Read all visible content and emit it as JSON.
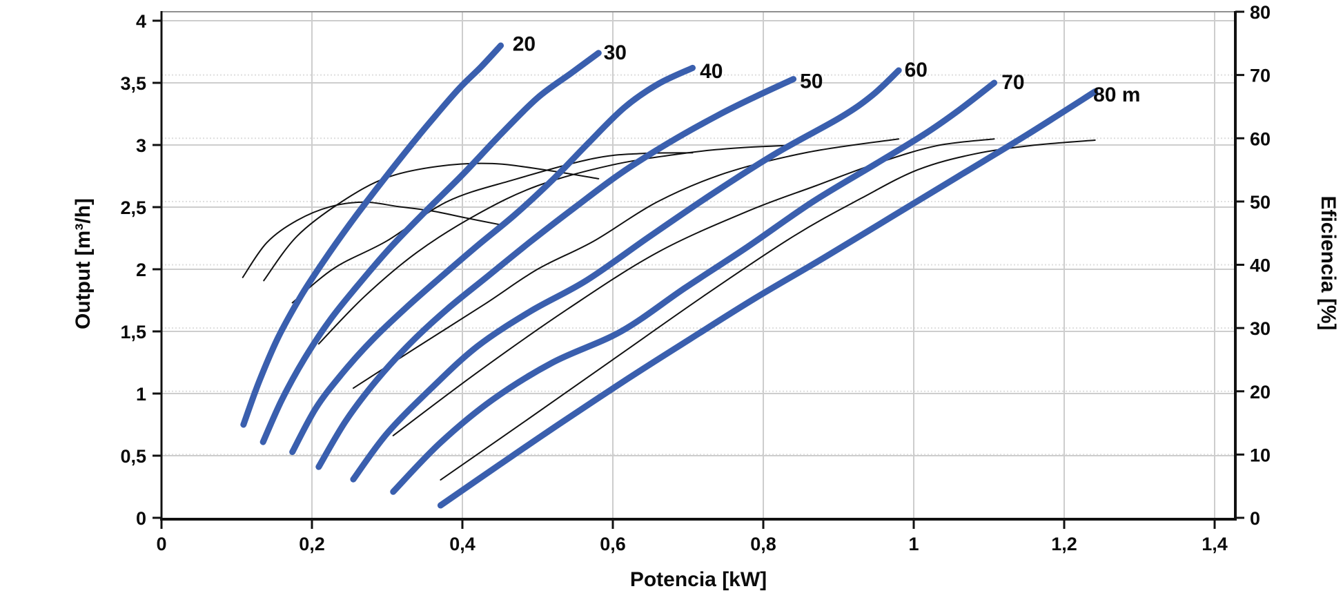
{
  "chart_data": {
    "type": "line",
    "title": "",
    "xlabel": "Potencia [kW]",
    "ylabel_left": "Output [m³/h]",
    "ylabel_right": "Eficiencia [%]",
    "x_axis": {
      "min": 0,
      "max": 1.427,
      "ticks": [
        0,
        0.2,
        0.4,
        0.6,
        0.8,
        1.0,
        1.2,
        1.4
      ],
      "tick_labels": [
        "0",
        "0,2",
        "0,4",
        "0,6",
        "0,8",
        "1",
        "1,2",
        "1,4"
      ],
      "grid": "solid, at every 0.2"
    },
    "y_axis_left": {
      "min": 0,
      "max": 4.07,
      "ticks": [
        0,
        0.5,
        1.0,
        1.5,
        2.0,
        2.5,
        3.0,
        3.5,
        4.0
      ],
      "tick_labels": [
        "0",
        "0,5",
        "1",
        "1,5",
        "2",
        "2,5",
        "3",
        "3,5",
        "4"
      ],
      "grid": "solid, at every 0.5"
    },
    "y_axis_right": {
      "min": 0,
      "max": 80,
      "ticks": [
        0,
        10,
        20,
        30,
        40,
        50,
        60,
        70,
        80
      ],
      "tick_labels": [
        "0",
        "10",
        "20",
        "30",
        "40",
        "50",
        "60",
        "70",
        "80"
      ],
      "grid": "dotted, at every 10"
    },
    "head_curves": [
      {
        "label": "20",
        "label_at": [
          0.482,
          3.82
        ],
        "points": [
          [
            0.109,
            0.75
          ],
          [
            0.13,
            1.1
          ],
          [
            0.155,
            1.45
          ],
          [
            0.185,
            1.78
          ],
          [
            0.215,
            2.06
          ],
          [
            0.25,
            2.36
          ],
          [
            0.285,
            2.64
          ],
          [
            0.32,
            2.91
          ],
          [
            0.355,
            3.17
          ],
          [
            0.395,
            3.45
          ],
          [
            0.425,
            3.63
          ],
          [
            0.451,
            3.8
          ]
        ]
      },
      {
        "label": "30",
        "label_at": [
          0.603,
          3.75
        ],
        "points": [
          [
            0.135,
            0.61
          ],
          [
            0.16,
            0.95
          ],
          [
            0.19,
            1.28
          ],
          [
            0.225,
            1.6
          ],
          [
            0.265,
            1.9
          ],
          [
            0.305,
            2.18
          ],
          [
            0.35,
            2.46
          ],
          [
            0.4,
            2.76
          ],
          [
            0.45,
            3.08
          ],
          [
            0.5,
            3.38
          ],
          [
            0.545,
            3.58
          ],
          [
            0.581,
            3.74
          ]
        ]
      },
      {
        "label": "40",
        "label_at": [
          0.731,
          3.6
        ],
        "points": [
          [
            0.174,
            0.53
          ],
          [
            0.205,
            0.88
          ],
          [
            0.24,
            1.16
          ],
          [
            0.28,
            1.43
          ],
          [
            0.325,
            1.69
          ],
          [
            0.37,
            1.93
          ],
          [
            0.42,
            2.19
          ],
          [
            0.47,
            2.44
          ],
          [
            0.52,
            2.72
          ],
          [
            0.565,
            3.0
          ],
          [
            0.615,
            3.3
          ],
          [
            0.66,
            3.49
          ],
          [
            0.706,
            3.62
          ]
        ]
      },
      {
        "label": "50",
        "label_at": [
          0.864,
          3.52
        ],
        "points": [
          [
            0.209,
            0.41
          ],
          [
            0.245,
            0.78
          ],
          [
            0.285,
            1.1
          ],
          [
            0.33,
            1.4
          ],
          [
            0.38,
            1.68
          ],
          [
            0.435,
            1.95
          ],
          [
            0.49,
            2.22
          ],
          [
            0.55,
            2.5
          ],
          [
            0.61,
            2.77
          ],
          [
            0.675,
            3.02
          ],
          [
            0.74,
            3.24
          ],
          [
            0.79,
            3.39
          ],
          [
            0.84,
            3.53
          ]
        ]
      },
      {
        "label": "60",
        "label_at": [
          1.003,
          3.61
        ],
        "points": [
          [
            0.255,
            0.31
          ],
          [
            0.3,
            0.68
          ],
          [
            0.36,
            1.05
          ],
          [
            0.42,
            1.38
          ],
          [
            0.49,
            1.66
          ],
          [
            0.565,
            1.91
          ],
          [
            0.648,
            2.26
          ],
          [
            0.733,
            2.61
          ],
          [
            0.819,
            2.94
          ],
          [
            0.902,
            3.22
          ],
          [
            0.945,
            3.4
          ],
          [
            0.98,
            3.6
          ]
        ]
      },
      {
        "label": "70",
        "label_at": [
          1.132,
          3.51
        ],
        "points": [
          [
            0.308,
            0.21
          ],
          [
            0.37,
            0.6
          ],
          [
            0.44,
            0.95
          ],
          [
            0.52,
            1.25
          ],
          [
            0.611,
            1.5
          ],
          [
            0.696,
            1.85
          ],
          [
            0.779,
            2.18
          ],
          [
            0.865,
            2.54
          ],
          [
            0.95,
            2.85
          ],
          [
            1.015,
            3.09
          ],
          [
            1.06,
            3.28
          ],
          [
            1.107,
            3.5
          ]
        ]
      },
      {
        "label": "80 m",
        "label_at": [
          1.27,
          3.41
        ],
        "points": [
          [
            0.371,
            0.1
          ],
          [
            0.45,
            0.43
          ],
          [
            0.53,
            0.76
          ],
          [
            0.62,
            1.12
          ],
          [
            0.703,
            1.44
          ],
          [
            0.79,
            1.77
          ],
          [
            0.88,
            2.09
          ],
          [
            0.97,
            2.42
          ],
          [
            1.06,
            2.75
          ],
          [
            1.15,
            3.08
          ],
          [
            1.241,
            3.43
          ]
        ]
      }
    ],
    "efficiency_curves": [
      {
        "head": "20",
        "points": [
          [
            0.108,
            38
          ],
          [
            0.14,
            43.5
          ],
          [
            0.18,
            47
          ],
          [
            0.225,
            49.2
          ],
          [
            0.27,
            49.9
          ],
          [
            0.315,
            49.2
          ],
          [
            0.36,
            48.5
          ],
          [
            0.405,
            47.4
          ],
          [
            0.452,
            46.3
          ]
        ]
      },
      {
        "head": "30",
        "points": [
          [
            0.136,
            37.5
          ],
          [
            0.18,
            44.5
          ],
          [
            0.24,
            50
          ],
          [
            0.3,
            53.8
          ],
          [
            0.37,
            55.6
          ],
          [
            0.44,
            56.0
          ],
          [
            0.51,
            55.0
          ],
          [
            0.581,
            53.6
          ]
        ]
      },
      {
        "head": "40",
        "points": [
          [
            0.174,
            34
          ],
          [
            0.23,
            39.5
          ],
          [
            0.3,
            43.8
          ],
          [
            0.38,
            50
          ],
          [
            0.47,
            53.5
          ],
          [
            0.574,
            56.8
          ],
          [
            0.64,
            57.6
          ],
          [
            0.706,
            57.7
          ]
        ]
      },
      {
        "head": "50",
        "points": [
          [
            0.209,
            27.5
          ],
          [
            0.27,
            35
          ],
          [
            0.34,
            42
          ],
          [
            0.42,
            48
          ],
          [
            0.5,
            52.5
          ],
          [
            0.6,
            55.8
          ],
          [
            0.7,
            57.7
          ],
          [
            0.77,
            58.5
          ],
          [
            0.842,
            58.9
          ]
        ]
      },
      {
        "head": "60",
        "points": [
          [
            0.255,
            20.5
          ],
          [
            0.34,
            27
          ],
          [
            0.43,
            33.8
          ],
          [
            0.5,
            39.3
          ],
          [
            0.574,
            43.7
          ],
          [
            0.66,
            50
          ],
          [
            0.75,
            54.5
          ],
          [
            0.86,
            57.8
          ],
          [
            0.98,
            59.9
          ]
        ]
      },
      {
        "head": "70",
        "points": [
          [
            0.308,
            13
          ],
          [
            0.42,
            23
          ],
          [
            0.54,
            33
          ],
          [
            0.66,
            42
          ],
          [
            0.78,
            48.5
          ],
          [
            0.87,
            52.5
          ],
          [
            0.95,
            56
          ],
          [
            1.03,
            58.8
          ],
          [
            1.107,
            59.9
          ]
        ]
      },
      {
        "head": "80",
        "points": [
          [
            0.371,
            6
          ],
          [
            0.48,
            15
          ],
          [
            0.6,
            25
          ],
          [
            0.72,
            35
          ],
          [
            0.84,
            44.5
          ],
          [
            0.93,
            50.5
          ],
          [
            1.005,
            55
          ],
          [
            1.08,
            57.5
          ],
          [
            1.16,
            58.9
          ],
          [
            1.241,
            59.7
          ]
        ]
      }
    ],
    "legend": "none"
  },
  "styles": {
    "head_curve_color": "#3a5fae",
    "efficiency_curve_color": "#111111",
    "grid_major_color": "#cdcdcd",
    "grid_dotted_color": "#dedede",
    "axis_color": "#111111",
    "frame_top_color": "#8f8f8f",
    "background": "#ffffff"
  }
}
